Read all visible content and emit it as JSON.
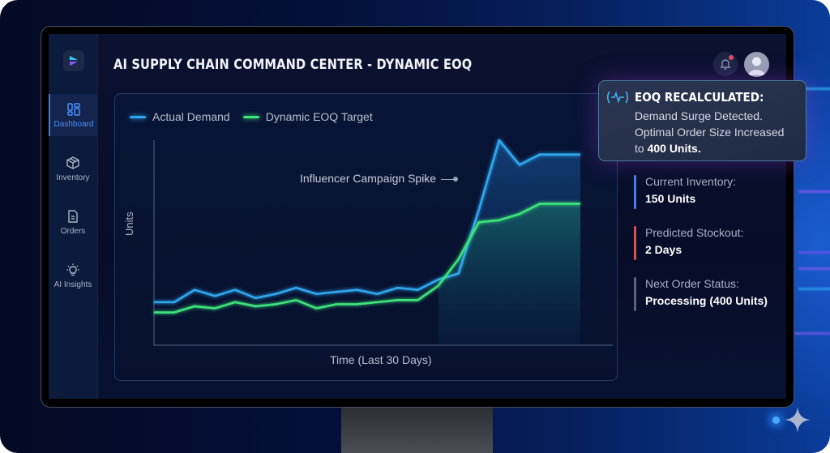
{
  "app": {
    "title": "AI SUPPLY CHAIN COMMAND CENTER - DYNAMIC EOQ"
  },
  "sidebar": {
    "items": [
      {
        "label": "Dashboard",
        "icon": "dashboard-grid-icon",
        "active": true
      },
      {
        "label": "Inventory",
        "icon": "package-box-icon",
        "active": false
      },
      {
        "label": "Orders",
        "icon": "document-icon",
        "active": false
      },
      {
        "label": "AI Insights",
        "icon": "lightbulb-icon",
        "active": false
      }
    ]
  },
  "header": {
    "notification_icon": "bell-icon",
    "notification_badge_color": "#e34b5a",
    "avatar_icon": "user-avatar-icon"
  },
  "chart": {
    "legend": [
      {
        "label": "Actual Demand",
        "color": "#2fa8f0"
      },
      {
        "label": "Dynamic EOQ Target",
        "color": "#3ee47a"
      }
    ],
    "ylabel": "Units",
    "xlabel": "Time (Last 30 Days)",
    "annotation": "Influencer Campaign Spike"
  },
  "alert": {
    "icon": "pulse-wave-icon",
    "title": "EOQ RECALCULATED:",
    "line1": "Demand Surge Detected.",
    "line2": "Optimal Order Size Increased",
    "line3_prefix": "to ",
    "line3_bold": "400 Units."
  },
  "kpis": [
    {
      "label": "Current Inventory:",
      "value": "150 Units",
      "color": "#4a7ee8"
    },
    {
      "label": "Predicted Stockout:",
      "value": "2 Days",
      "color": "#d9544f"
    },
    {
      "label": "Next Order Status:",
      "value": "Processing (400 Units)",
      "color": "#5a6378"
    }
  ],
  "chart_data": {
    "type": "line",
    "title": "",
    "xlabel": "Time (Last 30 Days)",
    "ylabel": "Units",
    "ylim": [
      0,
      100
    ],
    "grid": false,
    "legend_position": "top-left",
    "x": [
      1,
      2,
      3,
      4,
      5,
      6,
      7,
      8,
      9,
      10,
      11,
      12,
      13,
      14,
      15,
      16,
      17,
      18,
      19,
      20,
      21,
      22
    ],
    "series": [
      {
        "name": "Actual Demand",
        "color": "#2fa8f0",
        "values": [
          21,
          21,
          27,
          24,
          27,
          23,
          25,
          28,
          25,
          26,
          27,
          25,
          28,
          27,
          32,
          35,
          66,
          100,
          88,
          93,
          93,
          93
        ]
      },
      {
        "name": "Dynamic EOQ Target",
        "color": "#3ee47a",
        "values": [
          16,
          16,
          19,
          18,
          21,
          19,
          20,
          22,
          18,
          20,
          20,
          21,
          22,
          22,
          29,
          42,
          60,
          61,
          64,
          69,
          69,
          69
        ]
      }
    ],
    "annotations": [
      {
        "text": "Influencer Campaign Spike",
        "x": 16.7
      }
    ]
  }
}
